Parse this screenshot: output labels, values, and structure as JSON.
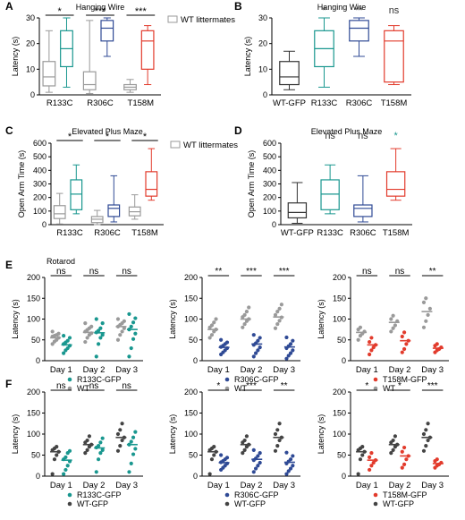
{
  "colors": {
    "gray": "#9a9a9a",
    "teal": "#19978f",
    "navy": "#2f4a95",
    "red": "#e23b2c",
    "black": "#333333",
    "dark": "#444444"
  },
  "chart_data": [
    {
      "id": "A",
      "type": "box",
      "title": "Hanging Wire",
      "ylabel": "Latency (s)",
      "ylim": [
        0,
        30
      ],
      "yticks": [
        0,
        10,
        20,
        30
      ],
      "categories": [
        "R133C",
        "R306C",
        "T158M"
      ],
      "legend": "WT littermates",
      "series": [
        {
          "group": "R133C",
          "kind": "WT littermates",
          "color": "gray",
          "whisker_low": 1,
          "q1": 3.5,
          "median": 7,
          "q3": 13,
          "whisker_high": 25
        },
        {
          "group": "R133C",
          "kind": "mutant",
          "color": "teal",
          "whisker_low": 3,
          "q1": 11,
          "median": 18,
          "q3": 25,
          "whisker_high": 30
        },
        {
          "group": "R306C",
          "kind": "WT littermates",
          "color": "gray",
          "whisker_low": 0.5,
          "q1": 2,
          "median": 4,
          "q3": 9,
          "whisker_high": 29
        },
        {
          "group": "R306C",
          "kind": "mutant",
          "color": "navy",
          "whisker_low": 15,
          "q1": 21,
          "median": 26,
          "q3": 29,
          "whisker_high": 30
        },
        {
          "group": "T158M",
          "kind": "WT littermates",
          "color": "gray",
          "whisker_low": 1,
          "q1": 2,
          "median": 3,
          "q3": 4,
          "whisker_high": 6
        },
        {
          "group": "T158M",
          "kind": "mutant",
          "color": "red",
          "whisker_low": 4,
          "q1": 10,
          "median": 21,
          "q3": 25,
          "whisker_high": 27
        }
      ],
      "significance": [
        "*",
        "***",
        "***"
      ]
    },
    {
      "id": "B",
      "type": "box",
      "title": "Hanging Wire",
      "ylabel": "Latency (s)",
      "ylim": [
        0,
        30
      ],
      "yticks": [
        0,
        10,
        20,
        30
      ],
      "categories": [
        "WT-GFP",
        "R133C",
        "R306C",
        "T158M"
      ],
      "series": [
        {
          "group": "WT-GFP",
          "color": "black",
          "whisker_low": 2,
          "q1": 4,
          "median": 7,
          "q3": 13,
          "whisker_high": 17
        },
        {
          "group": "R133C",
          "color": "teal",
          "whisker_low": 3,
          "q1": 11,
          "median": 18,
          "q3": 25,
          "whisker_high": 30
        },
        {
          "group": "R306C",
          "color": "navy",
          "whisker_low": 15,
          "q1": 21,
          "median": 26,
          "q3": 29,
          "whisker_high": 30
        },
        {
          "group": "T158M",
          "color": "red",
          "whisker_low": 4,
          "q1": 5,
          "median": 21,
          "q3": 25,
          "whisker_high": 27
        }
      ],
      "significance": [
        "",
        "*",
        "**",
        "ns"
      ],
      "significance_color": [
        "",
        "black",
        "black",
        "black"
      ]
    },
    {
      "id": "C",
      "type": "box",
      "title": "Elevated Plus Maze",
      "ylabel": "Open Arm Time (s)",
      "ylim": [
        0,
        600
      ],
      "yticks": [
        0,
        100,
        200,
        300,
        400,
        500,
        600
      ],
      "categories": [
        "R133C",
        "R306C",
        "T158M"
      ],
      "legend": "WT littermates",
      "series": [
        {
          "group": "R133C",
          "kind": "WT littermates",
          "color": "gray",
          "whisker_low": 5,
          "q1": 45,
          "median": 80,
          "q3": 140,
          "whisker_high": 230
        },
        {
          "group": "R133C",
          "kind": "mutant",
          "color": "teal",
          "whisker_low": 80,
          "q1": 110,
          "median": 225,
          "q3": 330,
          "whisker_high": 440
        },
        {
          "group": "R306C",
          "kind": "WT littermates",
          "color": "gray",
          "whisker_low": 0,
          "q1": 15,
          "median": 40,
          "q3": 60,
          "whisker_high": 105
        },
        {
          "group": "R306C",
          "kind": "mutant",
          "color": "navy",
          "whisker_low": 20,
          "q1": 60,
          "median": 120,
          "q3": 145,
          "whisker_high": 360
        },
        {
          "group": "T158M",
          "kind": "WT littermates",
          "color": "gray",
          "whisker_low": 40,
          "q1": 65,
          "median": 95,
          "q3": 130,
          "whisker_high": 220
        },
        {
          "group": "T158M",
          "kind": "mutant",
          "color": "red",
          "whisker_low": 180,
          "q1": 210,
          "median": 260,
          "q3": 390,
          "whisker_high": 560
        }
      ],
      "significance": [
        "*",
        "*",
        "*"
      ]
    },
    {
      "id": "D",
      "type": "box",
      "title": "Elevated Plus Maze",
      "ylabel": "Open Arm Time (s)",
      "ylim": [
        0,
        600
      ],
      "yticks": [
        0,
        100,
        200,
        300,
        400,
        500,
        600
      ],
      "categories": [
        "WT-GFP",
        "R133C",
        "R306C",
        "T158M"
      ],
      "series": [
        {
          "group": "WT-GFP",
          "color": "black",
          "whisker_low": 10,
          "q1": 50,
          "median": 90,
          "q3": 160,
          "whisker_high": 310
        },
        {
          "group": "R133C",
          "color": "teal",
          "whisker_low": 80,
          "q1": 110,
          "median": 225,
          "q3": 330,
          "whisker_high": 440
        },
        {
          "group": "R306C",
          "color": "navy",
          "whisker_low": 20,
          "q1": 60,
          "median": 120,
          "q3": 145,
          "whisker_high": 360
        },
        {
          "group": "T158M",
          "color": "red",
          "whisker_low": 180,
          "q1": 210,
          "median": 260,
          "q3": 390,
          "whisker_high": 560
        }
      ],
      "significance": [
        "",
        "ns",
        "ns",
        "*"
      ],
      "significance_color": [
        "",
        "black",
        "black",
        "teal"
      ]
    },
    {
      "id": "E1",
      "type": "scatter",
      "title": "Rotarod",
      "ylabel": "Latency (s)",
      "ylim": [
        0,
        200
      ],
      "yticks": [
        0,
        50,
        100,
        150,
        200
      ],
      "categories": [
        "Day 1",
        "Day 2",
        "Day 3"
      ],
      "significance": [
        "ns",
        "ns",
        "ns"
      ],
      "legend": [
        "R133C-GFP",
        "WT"
      ],
      "series": [
        {
          "name": "WT",
          "color": "gray",
          "mean": [
            55,
            68,
            82
          ],
          "points": [
            [
              40,
              46,
              50,
              55,
              58,
              60,
              62,
              65,
              70
            ],
            [
              45,
              55,
              62,
              66,
              70,
              74,
              78,
              82,
              90
            ],
            [
              50,
              62,
              70,
              78,
              82,
              86,
              90,
              95,
              100
            ]
          ]
        },
        {
          "name": "R133C-GFP",
          "color": "teal",
          "mean": [
            38,
            67,
            75
          ],
          "points": [
            [
              18,
              25,
              30,
              36,
              40,
              44,
              48,
              55,
              60
            ],
            [
              10,
              40,
              55,
              62,
              68,
              72,
              78,
              90,
              100
            ],
            [
              10,
              30,
              52,
              65,
              75,
              82,
              92,
              102,
              112
            ]
          ]
        }
      ]
    },
    {
      "id": "E2",
      "type": "scatter",
      "ylabel": "Latency (s)",
      "ylim": [
        0,
        200
      ],
      "yticks": [
        0,
        50,
        100,
        150,
        200
      ],
      "categories": [
        "Day 1",
        "Day 2",
        "Day 3"
      ],
      "significance": [
        "**",
        "***",
        "***"
      ],
      "legend": [
        "R306C-GFP",
        "WT"
      ],
      "series": [
        {
          "name": "WT",
          "color": "gray",
          "mean": [
            75,
            100,
            105
          ],
          "points": [
            [
              55,
              62,
              70,
              75,
              80,
              85,
              92,
              100
            ],
            [
              80,
              88,
              95,
              100,
              105,
              110,
              118,
              128
            ],
            [
              78,
              88,
              96,
              104,
              110,
              118,
              125,
              135
            ]
          ]
        },
        {
          "name": "R306C-GFP",
          "color": "navy",
          "mean": [
            32,
            40,
            33
          ],
          "points": [
            [
              15,
              20,
              25,
              30,
              33,
              36,
              40,
              44,
              50
            ],
            [
              10,
              18,
              25,
              32,
              38,
              42,
              48,
              55,
              62
            ],
            [
              5,
              12,
              18,
              25,
              30,
              35,
              40,
              48,
              56
            ]
          ]
        }
      ]
    },
    {
      "id": "E3",
      "type": "scatter",
      "ylabel": "Latency (s)",
      "ylim": [
        0,
        200
      ],
      "yticks": [
        0,
        50,
        100,
        150,
        200
      ],
      "categories": [
        "Day 1",
        "Day 2",
        "Day 3"
      ],
      "significance": [
        "ns",
        "ns",
        "**"
      ],
      "legend": [
        "T158M-GFP",
        "WT"
      ],
      "series": [
        {
          "name": "WT",
          "color": "gray",
          "mean": [
            68,
            92,
            118
          ],
          "points": [
            [
              50,
              60,
              65,
              70,
              75,
              80
            ],
            [
              70,
              78,
              85,
              95,
              100,
              108
            ],
            [
              80,
              95,
              110,
              125,
              140,
              150
            ]
          ]
        },
        {
          "name": "T158M-GFP",
          "color": "red",
          "mean": [
            38,
            48,
            30
          ],
          "points": [
            [
              15,
              25,
              32,
              38,
              45,
              55
            ],
            [
              20,
              28,
              40,
              48,
              58,
              68
            ],
            [
              20,
              25,
              28,
              32,
              36,
              40
            ]
          ]
        }
      ]
    },
    {
      "id": "F1",
      "type": "scatter",
      "ylabel": "Latency (s)",
      "ylim": [
        0,
        200
      ],
      "yticks": [
        0,
        50,
        100,
        150,
        200
      ],
      "categories": [
        "Day 1",
        "Day 2",
        "Day 3"
      ],
      "significance": [
        "ns",
        "ns",
        "ns"
      ],
      "legend": [
        "R133C-GFP",
        "WT-GFP"
      ],
      "series": [
        {
          "name": "WT-GFP",
          "color": "dark",
          "mean": [
            58,
            75,
            92
          ],
          "points": [
            [
              5,
              40,
              50,
              58,
              62,
              66,
              70
            ],
            [
              55,
              62,
              70,
              75,
              80,
              85,
              95
            ],
            [
              60,
              72,
              85,
              92,
              100,
              110,
              125
            ]
          ]
        },
        {
          "name": "R133C-GFP",
          "color": "teal",
          "mean": [
            38,
            67,
            75
          ],
          "points": [
            [
              5,
              15,
              25,
              35,
              40,
              45,
              55,
              60
            ],
            [
              10,
              40,
              55,
              62,
              68,
              72,
              80,
              90
            ],
            [
              10,
              30,
              52,
              65,
              75,
              82,
              92,
              105
            ]
          ]
        }
      ]
    },
    {
      "id": "F2",
      "type": "scatter",
      "ylabel": "Latency (s)",
      "ylim": [
        0,
        200
      ],
      "yticks": [
        0,
        50,
        100,
        150,
        200
      ],
      "categories": [
        "Day 1",
        "Day 2",
        "Day 3"
      ],
      "significance": [
        "*",
        "***",
        "**"
      ],
      "legend": [
        "R306C-GFP",
        "WT-GFP"
      ],
      "series": [
        {
          "name": "WT-GFP",
          "color": "dark",
          "mean": [
            58,
            75,
            92
          ],
          "points": [
            [
              5,
              40,
              50,
              58,
              62,
              66,
              70
            ],
            [
              55,
              62,
              70,
              75,
              80,
              85,
              95
            ],
            [
              60,
              72,
              85,
              92,
              100,
              110,
              125
            ]
          ]
        },
        {
          "name": "R306C-GFP",
          "color": "navy",
          "mean": [
            32,
            40,
            33
          ],
          "points": [
            [
              15,
              20,
              25,
              30,
              33,
              36,
              40,
              44,
              50
            ],
            [
              10,
              18,
              25,
              32,
              38,
              42,
              48,
              55,
              62
            ],
            [
              5,
              12,
              18,
              25,
              30,
              35,
              40,
              48,
              56
            ]
          ]
        }
      ]
    },
    {
      "id": "F3",
      "type": "scatter",
      "ylabel": "Latency (s)",
      "ylim": [
        0,
        200
      ],
      "yticks": [
        0,
        50,
        100,
        150,
        200
      ],
      "categories": [
        "Day 1",
        "Day 2",
        "Day 3"
      ],
      "significance": [
        "*",
        "*",
        "***"
      ],
      "legend": [
        "T158M-GFP",
        "WT-GFP"
      ],
      "series": [
        {
          "name": "WT-GFP",
          "color": "dark",
          "mean": [
            58,
            75,
            92
          ],
          "points": [
            [
              5,
              40,
              50,
              58,
              62,
              66,
              70
            ],
            [
              55,
              62,
              70,
              75,
              80,
              85,
              95
            ],
            [
              60,
              72,
              85,
              92,
              100,
              110,
              125
            ]
          ]
        },
        {
          "name": "T158M-GFP",
          "color": "red",
          "mean": [
            38,
            48,
            30
          ],
          "points": [
            [
              15,
              25,
              32,
              38,
              45,
              55
            ],
            [
              20,
              28,
              40,
              48,
              58,
              68
            ],
            [
              20,
              25,
              28,
              32,
              36,
              40
            ]
          ]
        }
      ]
    }
  ],
  "panel_letters": [
    "A",
    "B",
    "C",
    "D",
    "E",
    "F"
  ]
}
